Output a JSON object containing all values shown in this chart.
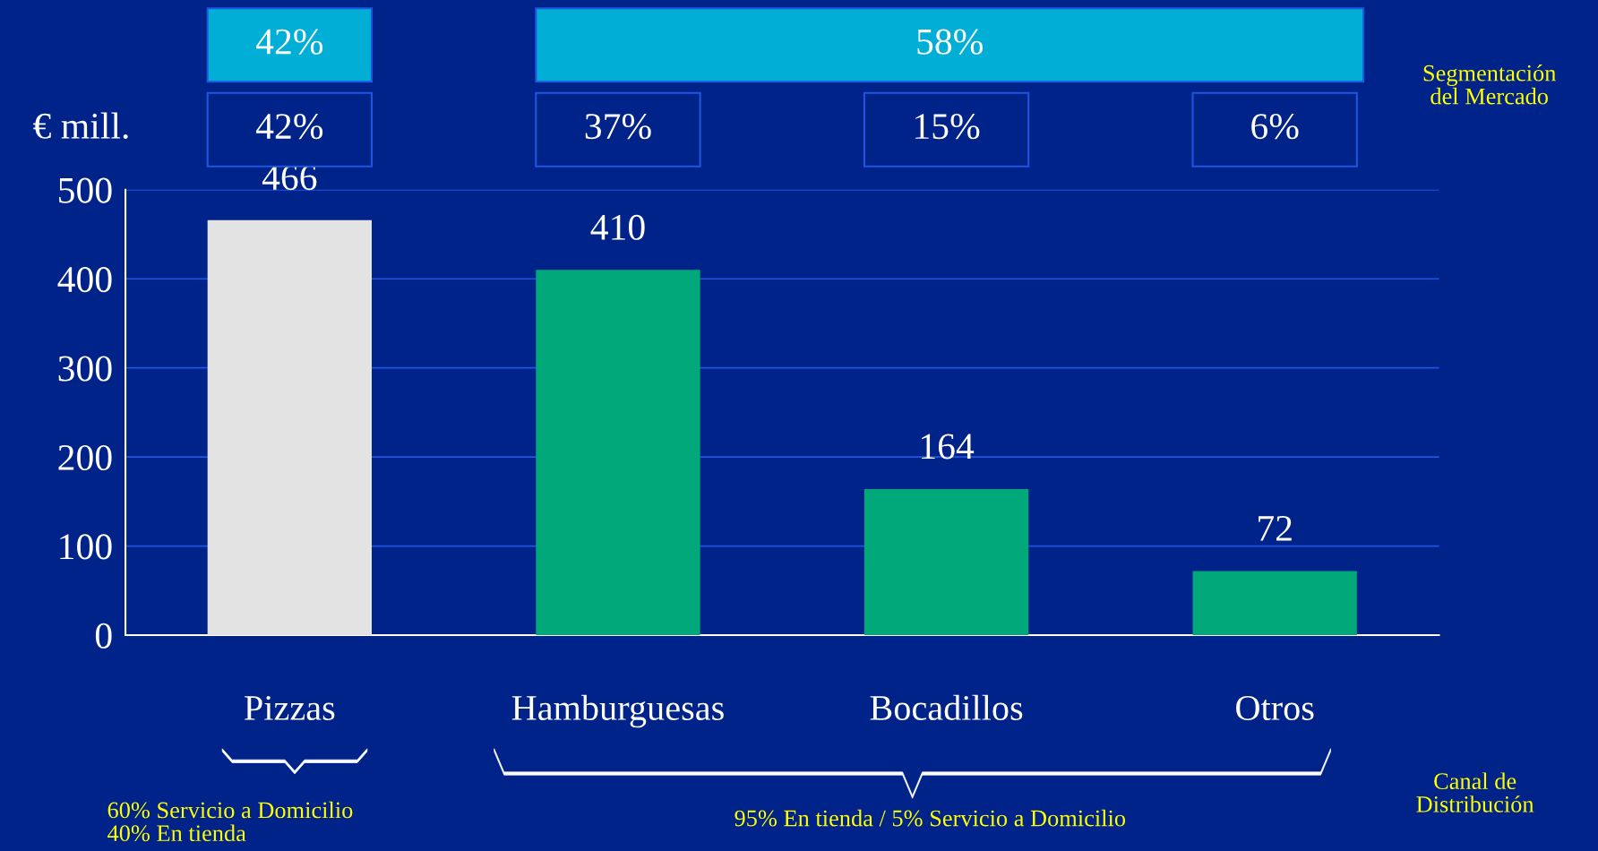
{
  "chart_data": {
    "type": "bar",
    "ylabel": "€ mill.",
    "categories": [
      "Pizzas",
      "Hamburguesas",
      "Bocadillos",
      "Otros"
    ],
    "values": [
      466,
      410,
      164,
      72
    ],
    "colors": [
      "#e3e3e3",
      "#00a87a",
      "#00a87a",
      "#00a87a"
    ],
    "ylim": [
      0,
      500
    ],
    "yticks": [
      0,
      100,
      200,
      300,
      400,
      500
    ],
    "grid": "y",
    "data_labels": true,
    "annotations": [
      "42%",
      "58%",
      "42%",
      "37%",
      "15%",
      "6%",
      "Segmentación del Mercado",
      "Canal de Distribución",
      "60% Servicio a Domicilio\n40% En tienda",
      "95% En tienda / 5% Servicio a Domicilio"
    ]
  }
}
